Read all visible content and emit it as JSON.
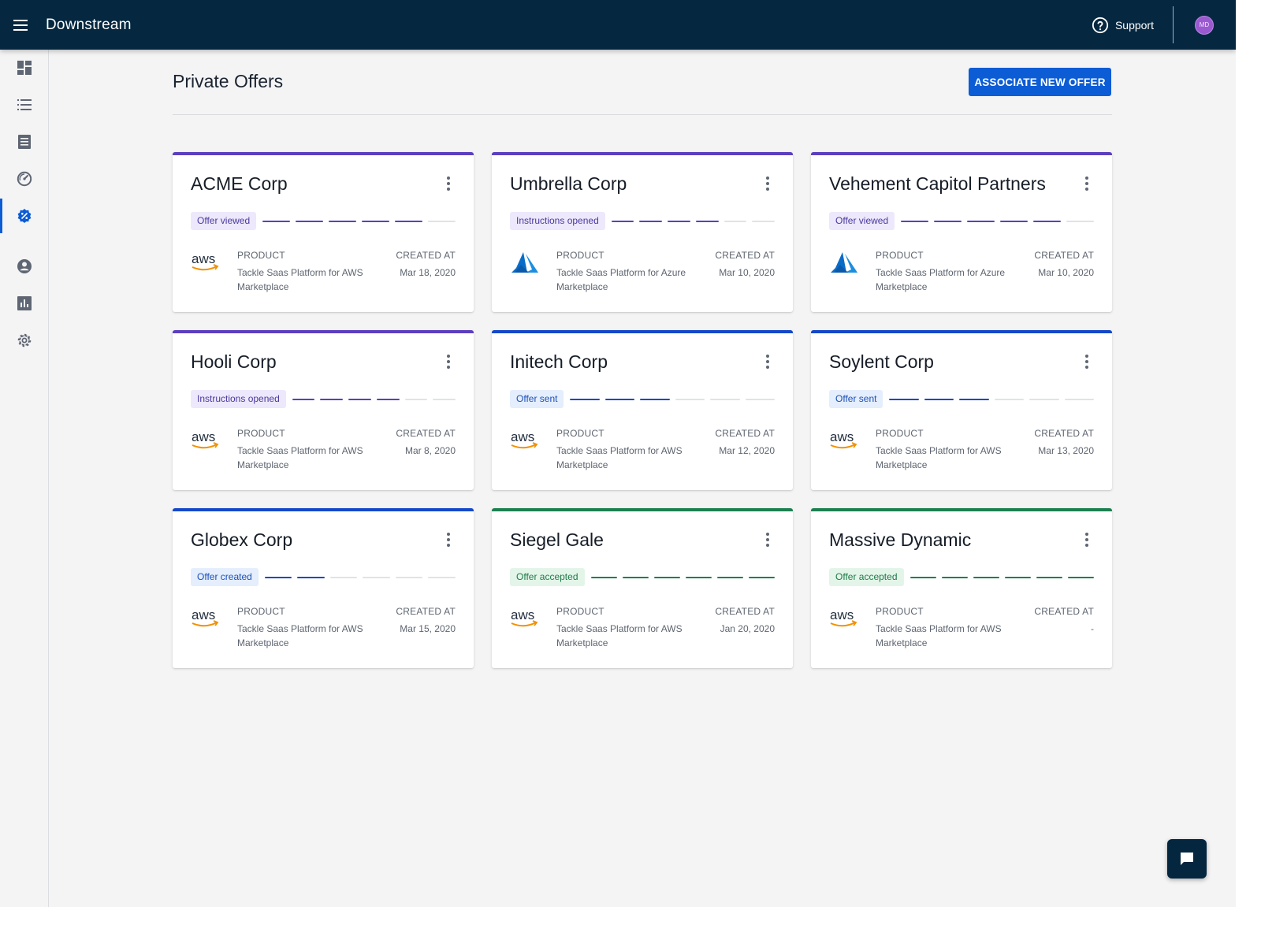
{
  "app": {
    "title": "Downstream"
  },
  "header": {
    "support_label": "Support",
    "avatar_initials": "MD"
  },
  "sidebar": {
    "items": [
      {
        "icon": "dashboard-icon",
        "active": false
      },
      {
        "icon": "list-icon",
        "active": false
      },
      {
        "icon": "document-icon",
        "active": false
      },
      {
        "icon": "gauge-icon",
        "active": false
      },
      {
        "icon": "verified-badge-icon",
        "active": true
      },
      {
        "icon": "account-circle-icon",
        "active": false
      },
      {
        "icon": "bar-chart-icon",
        "active": false
      },
      {
        "icon": "gear-icon",
        "active": false
      }
    ]
  },
  "main": {
    "title": "Private Offers",
    "associate_button": "ASSOCIATE NEW OFFER",
    "labels": {
      "product": "PRODUCT",
      "created_at": "CREATED AT"
    },
    "offers": [
      {
        "company": "ACME Corp",
        "status": "Offer viewed",
        "status_kind": "purple",
        "progress_filled": 5,
        "progress_total": 6,
        "logo": "aws",
        "product": "Tackle Saas Platform for AWS Marketplace",
        "created": "Mar 18, 2020"
      },
      {
        "company": "Umbrella Corp",
        "status": "Instructions opened",
        "status_kind": "purple",
        "progress_filled": 4,
        "progress_total": 6,
        "logo": "azure",
        "product": "Tackle Saas Platform for Azure Marketplace",
        "created": "Mar 10, 2020"
      },
      {
        "company": "Vehement Capitol Partners",
        "status": "Offer viewed",
        "status_kind": "purple",
        "progress_filled": 5,
        "progress_total": 6,
        "logo": "azure",
        "product": "Tackle Saas Platform for Azure Marketplace",
        "created": "Mar 10, 2020"
      },
      {
        "company": "Hooli Corp",
        "status": "Instructions opened",
        "status_kind": "purple",
        "progress_filled": 4,
        "progress_total": 6,
        "logo": "aws",
        "product": "Tackle Saas Platform for AWS Marketplace",
        "created": "Mar 8, 2020"
      },
      {
        "company": "Initech Corp",
        "status": "Offer sent",
        "status_kind": "blue",
        "progress_filled": 3,
        "progress_total": 6,
        "logo": "aws",
        "product": "Tackle Saas Platform for AWS Marketplace",
        "created": "Mar 12, 2020"
      },
      {
        "company": "Soylent Corp",
        "status": "Offer sent",
        "status_kind": "blue",
        "progress_filled": 3,
        "progress_total": 6,
        "logo": "aws",
        "product": "Tackle Saas Platform for AWS Marketplace",
        "created": "Mar 13, 2020"
      },
      {
        "company": "Globex Corp",
        "status": "Offer created",
        "status_kind": "blue",
        "progress_filled": 2,
        "progress_total": 6,
        "logo": "aws",
        "product": "Tackle Saas Platform for AWS Marketplace",
        "created": "Mar 15, 2020"
      },
      {
        "company": "Siegel Gale",
        "status": "Offer accepted",
        "status_kind": "green",
        "progress_filled": 6,
        "progress_total": 6,
        "logo": "aws",
        "product": "Tackle Saas Platform for AWS Marketplace",
        "created": "Jan 20, 2020"
      },
      {
        "company": "Massive Dynamic",
        "status": "Offer accepted",
        "status_kind": "green",
        "progress_filled": 6,
        "progress_total": 6,
        "logo": "aws",
        "product": "Tackle Saas Platform for AWS Marketplace",
        "created": "-"
      }
    ]
  },
  "colors": {
    "topbar": "#052840",
    "accent": "#0b5cd5",
    "purple": {
      "bar": "#5b3fbf",
      "badge_bg": "#ede8fb",
      "badge_text": "#4a3a9e"
    },
    "blue": {
      "bar": "#1448c9",
      "badge_bg": "#e4eefc",
      "badge_text": "#1d4fb8"
    },
    "green": {
      "bar": "#1d8050",
      "badge_bg": "#e3f5e9",
      "badge_text": "#1f7a47"
    },
    "dash_empty": "#e1e3e6"
  },
  "chat": {
    "icon": "chat-bubble-icon"
  }
}
